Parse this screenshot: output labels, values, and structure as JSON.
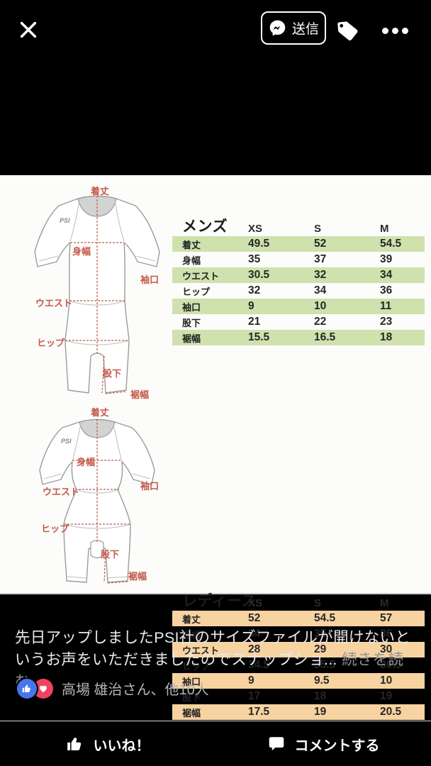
{
  "topbar": {
    "send_label": "送信"
  },
  "photo": {
    "logo": "PSI",
    "diagram_labels": {
      "length": "着丈",
      "chest": "身幅",
      "cuff": "袖口",
      "waist": "ウエスト",
      "hip": "ヒップ",
      "inseam": "股下",
      "hem": "裾幅"
    },
    "mens": {
      "title": "メンズ",
      "sizes": [
        "XS",
        "S",
        "M"
      ],
      "rows": [
        [
          "着丈",
          "49.5",
          "52",
          "54.5"
        ],
        [
          "身幅",
          "35",
          "37",
          "39"
        ],
        [
          "ウエスト",
          "30.5",
          "32",
          "34"
        ],
        [
          "ヒップ",
          "32",
          "34",
          "36"
        ],
        [
          "袖口",
          "9",
          "10",
          "11"
        ],
        [
          "股下",
          "21",
          "22",
          "23"
        ],
        [
          "裾幅",
          "15.5",
          "16.5",
          "18"
        ]
      ]
    },
    "ladies": {
      "title": "レディース",
      "sizes": [
        "XS",
        "S",
        "M"
      ],
      "rows": [
        [
          "着丈",
          "52",
          "54.5",
          "57"
        ],
        [
          "身幅",
          "34",
          "35",
          "36"
        ],
        [
          "ウエスト",
          "28",
          "29",
          "30"
        ],
        [
          "ヒップ",
          "34.5",
          "35.5",
          "36.5"
        ],
        [
          "袖口",
          "9",
          "9.5",
          "10"
        ],
        [
          "股下",
          "17",
          "18",
          "19"
        ],
        [
          "裾幅",
          "17.5",
          "19",
          "20.5"
        ]
      ]
    }
  },
  "caption": {
    "text": "先日アップしましたPSI社のサイズファイルが開けないというお声をいただきましたのでスナップショ... ",
    "read_more": "続きを読む"
  },
  "reactions": {
    "summary": "高場 雄治さん、他10人"
  },
  "footer": {
    "like_label": "いいね！",
    "comment_label": "コメントする"
  },
  "colors": {
    "mens_stripe": "#cfe1ad",
    "ladies_stripe": "#f7d3a2",
    "diagram_label_red": "#c4584a",
    "like_blue": "#4676ed",
    "love_red": "#ee4460"
  }
}
